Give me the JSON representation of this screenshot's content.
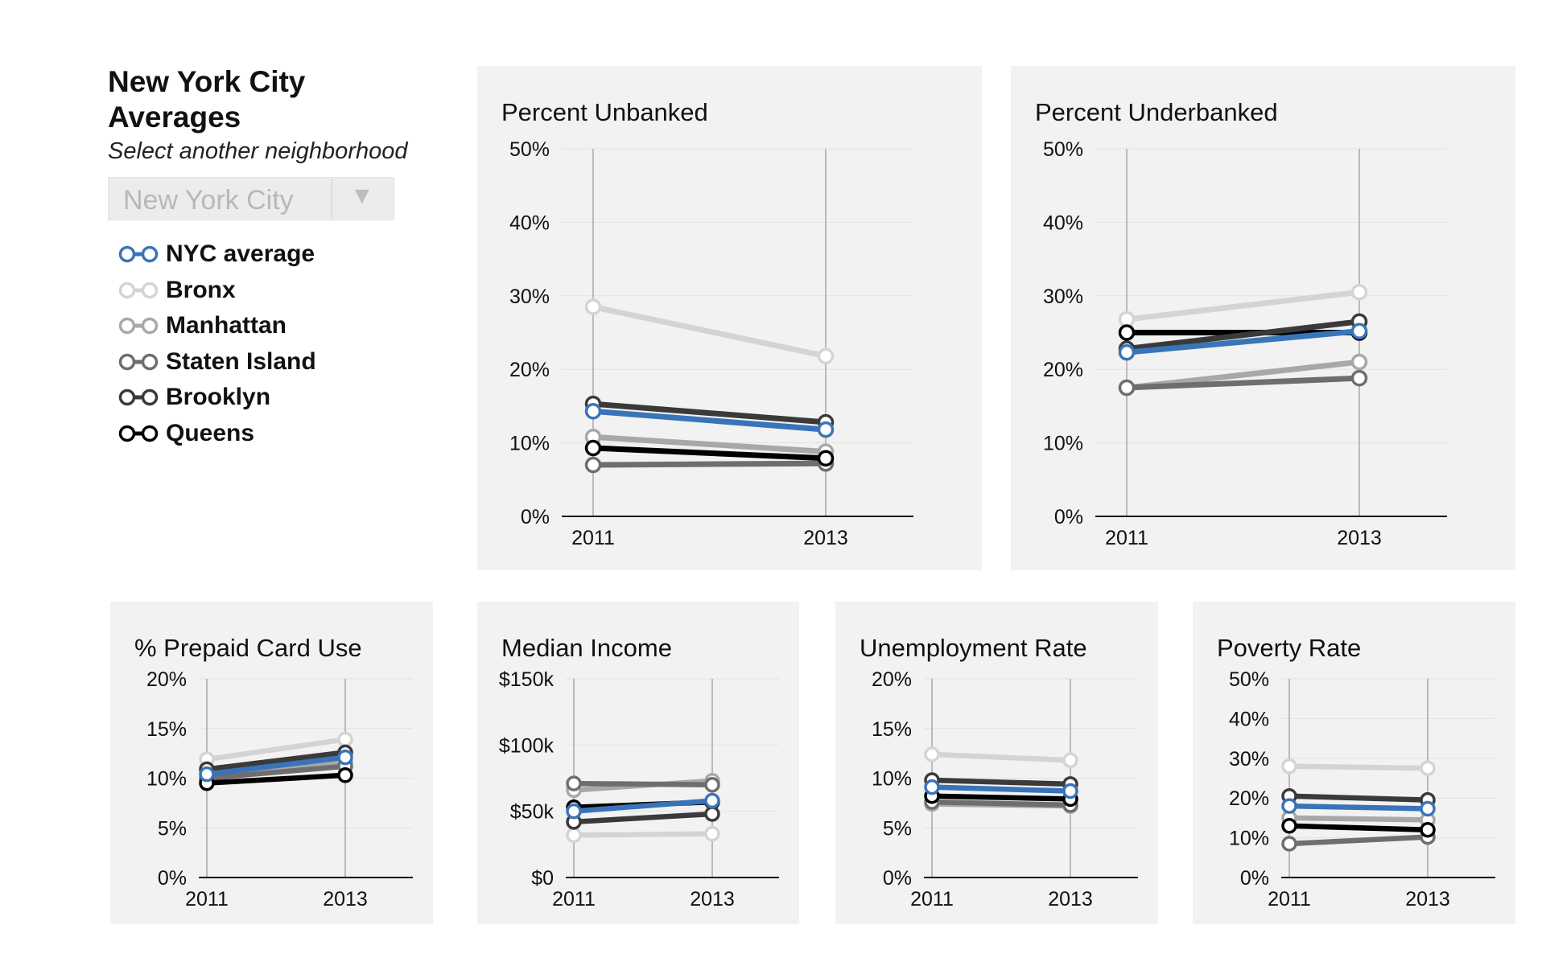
{
  "sidebar": {
    "title_line1": "New York City",
    "title_line2": "Averages",
    "subtitle": "Select another neighborhood",
    "select_value": "New York City",
    "select_arrow": "▼"
  },
  "legend": [
    {
      "label": "NYC average",
      "color": "#3a74b8"
    },
    {
      "label": "Bronx",
      "color": "#d4d4d4"
    },
    {
      "label": "Manhattan",
      "color": "#a8a8a8"
    },
    {
      "label": "Staten Island",
      "color": "#6e6e6e"
    },
    {
      "label": "Brooklyn",
      "color": "#3a3a3a"
    },
    {
      "label": "Queens",
      "color": "#000000"
    }
  ],
  "chart_data": [
    {
      "type": "line",
      "title": "Percent Unbanked",
      "x": [
        "2011",
        "2013"
      ],
      "yticks": [
        "0%",
        "10%",
        "20%",
        "30%",
        "40%",
        "50%"
      ],
      "ylim": [
        0,
        50
      ],
      "series": [
        {
          "name": "Bronx",
          "values": [
            28.5,
            21.8
          ]
        },
        {
          "name": "Manhattan",
          "values": [
            10.8,
            8.8
          ]
        },
        {
          "name": "Staten Island",
          "values": [
            7.0,
            7.2
          ]
        },
        {
          "name": "Queens",
          "values": [
            9.3,
            7.9
          ]
        },
        {
          "name": "Brooklyn",
          "values": [
            15.3,
            12.8
          ]
        },
        {
          "name": "NYC average",
          "values": [
            14.3,
            11.8
          ]
        }
      ]
    },
    {
      "type": "line",
      "title": "Percent Underbanked",
      "x": [
        "2011",
        "2013"
      ],
      "yticks": [
        "0%",
        "10%",
        "20%",
        "30%",
        "40%",
        "50%"
      ],
      "ylim": [
        0,
        50
      ],
      "series": [
        {
          "name": "Bronx",
          "values": [
            26.8,
            30.5
          ]
        },
        {
          "name": "Manhattan",
          "values": [
            17.5,
            21.0
          ]
        },
        {
          "name": "Staten Island",
          "values": [
            17.5,
            18.8
          ]
        },
        {
          "name": "Queens",
          "values": [
            25.0,
            25.0
          ]
        },
        {
          "name": "Brooklyn",
          "values": [
            22.8,
            26.5
          ]
        },
        {
          "name": "NYC average",
          "values": [
            22.3,
            25.2
          ]
        }
      ]
    },
    {
      "type": "line",
      "title": "% Prepaid Card Use",
      "x": [
        "2011",
        "2013"
      ],
      "yticks": [
        "0%",
        "5%",
        "10%",
        "15%",
        "20%"
      ],
      "ylim": [
        0,
        20
      ],
      "series": [
        {
          "name": "Bronx",
          "values": [
            11.9,
            13.9
          ]
        },
        {
          "name": "Manhattan",
          "values": [
            9.9,
            11.6
          ]
        },
        {
          "name": "Staten Island",
          "values": [
            10.0,
            11.2
          ]
        },
        {
          "name": "Queens",
          "values": [
            9.5,
            10.3
          ]
        },
        {
          "name": "Brooklyn",
          "values": [
            10.9,
            12.6
          ]
        },
        {
          "name": "NYC average",
          "values": [
            10.4,
            12.1
          ]
        }
      ]
    },
    {
      "type": "line",
      "title": "Median Income",
      "x": [
        "2011",
        "2013"
      ],
      "yticks": [
        "$0",
        "$50k",
        "$100k",
        "$150k"
      ],
      "ylim": [
        0,
        150
      ],
      "series": [
        {
          "name": "Bronx",
          "values": [
            32,
            33
          ]
        },
        {
          "name": "Manhattan",
          "values": [
            66,
            73
          ]
        },
        {
          "name": "Staten Island",
          "values": [
            71,
            70
          ]
        },
        {
          "name": "Queens",
          "values": [
            53,
            57
          ]
        },
        {
          "name": "Brooklyn",
          "values": [
            42,
            48
          ]
        },
        {
          "name": "NYC average",
          "values": [
            50,
            58
          ]
        }
      ]
    },
    {
      "type": "line",
      "title": "Unemployment Rate",
      "x": [
        "2011",
        "2013"
      ],
      "yticks": [
        "0%",
        "5%",
        "10%",
        "15%",
        "20%"
      ],
      "ylim": [
        0,
        20
      ],
      "series": [
        {
          "name": "Bronx",
          "values": [
            12.4,
            11.8
          ]
        },
        {
          "name": "Manhattan",
          "values": [
            7.4,
            7.2
          ]
        },
        {
          "name": "Staten Island",
          "values": [
            7.6,
            7.3
          ]
        },
        {
          "name": "Queens",
          "values": [
            8.2,
            7.9
          ]
        },
        {
          "name": "Brooklyn",
          "values": [
            9.8,
            9.4
          ]
        },
        {
          "name": "NYC average",
          "values": [
            9.1,
            8.7
          ]
        }
      ]
    },
    {
      "type": "line",
      "title": "Poverty Rate",
      "x": [
        "2011",
        "2013"
      ],
      "yticks": [
        "0%",
        "10%",
        "20%",
        "30%",
        "40%",
        "50%"
      ],
      "ylim": [
        0,
        50
      ],
      "series": [
        {
          "name": "Bronx",
          "values": [
            28,
            27.5
          ]
        },
        {
          "name": "Manhattan",
          "values": [
            15,
            14.5
          ]
        },
        {
          "name": "Staten Island",
          "values": [
            8.5,
            10.2
          ]
        },
        {
          "name": "Queens",
          "values": [
            13,
            12
          ]
        },
        {
          "name": "Brooklyn",
          "values": [
            20.5,
            19.5
          ]
        },
        {
          "name": "NYC average",
          "values": [
            18,
            17.3
          ]
        }
      ]
    }
  ]
}
